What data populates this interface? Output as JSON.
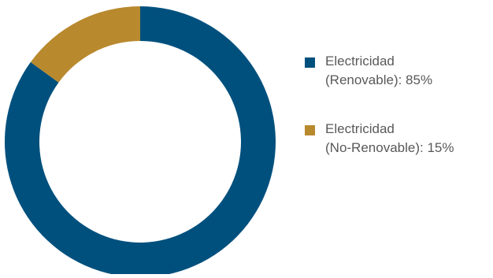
{
  "chart_data": {
    "type": "pie",
    "donut": true,
    "title": "",
    "legend_position": "right",
    "slices": [
      {
        "label_line1": "Electricidad",
        "label_line2": "(Renovable): 85%",
        "value": 85,
        "color": "#00507D"
      },
      {
        "label_line1": "Electricidad",
        "label_line2": "(No-Renovable): 15%",
        "value": 15,
        "color": "#B8892D"
      }
    ]
  }
}
